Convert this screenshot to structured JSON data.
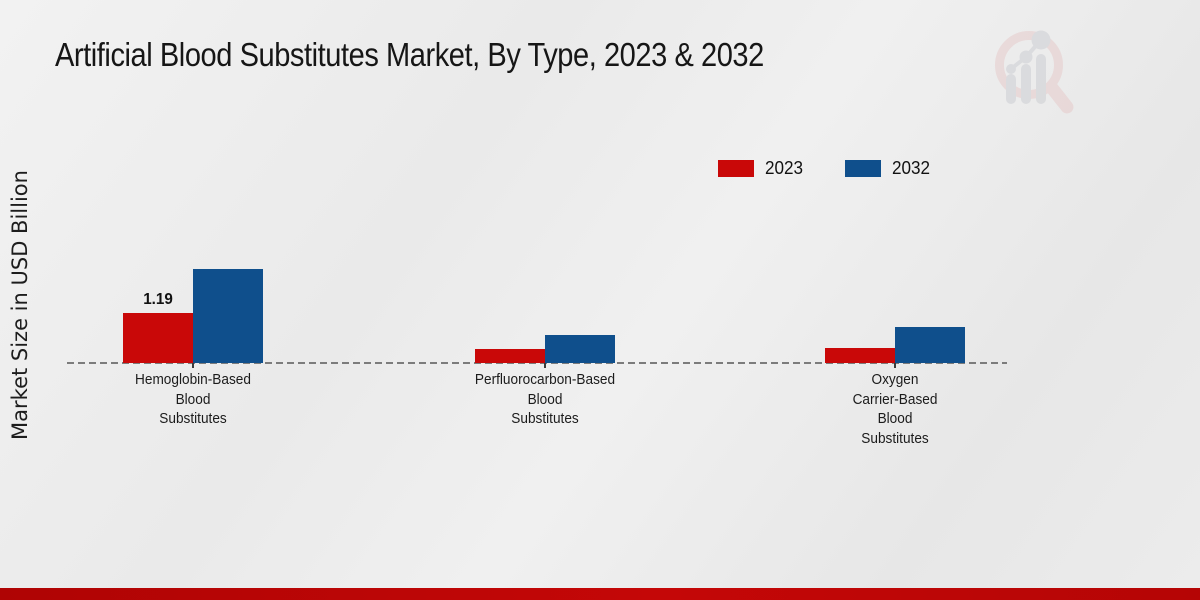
{
  "page": {
    "title": "Artificial Blood Substitutes Market, By Type, 2023 & 2032"
  },
  "chart_data": {
    "type": "bar",
    "title": "Artificial Blood Substitutes Market, By Type, 2023 & 2032",
    "xlabel": "",
    "ylabel": "Market Size in USD Billion",
    "ylim": [
      0,
      3
    ],
    "grid": false,
    "legend_position": "top-right",
    "categories": [
      "Hemoglobin-Based Blood Substitutes",
      "Perfluorocarbon-Based Blood Substitutes",
      "Oxygen Carrier-Based Blood Substitutes"
    ],
    "category_lines": [
      [
        "Hemoglobin-Based",
        "Blood",
        "Substitutes"
      ],
      [
        "Perfluorocarbon-Based",
        "Blood",
        "Substitutes"
      ],
      [
        "Oxygen",
        "Carrier-Based",
        "Blood",
        "Substitutes"
      ]
    ],
    "series": [
      {
        "name": "2023",
        "color": "#c90808",
        "values": [
          1.19,
          0.33,
          0.35
        ]
      },
      {
        "name": "2032",
        "color": "#0f4f8c",
        "values": [
          2.24,
          0.67,
          0.86
        ]
      }
    ],
    "data_labels": [
      {
        "series_index": 0,
        "category_index": 0,
        "text": "1.19"
      }
    ]
  },
  "watermark": {
    "icon": "market-research-magnifier-bar-chart-logo"
  }
}
